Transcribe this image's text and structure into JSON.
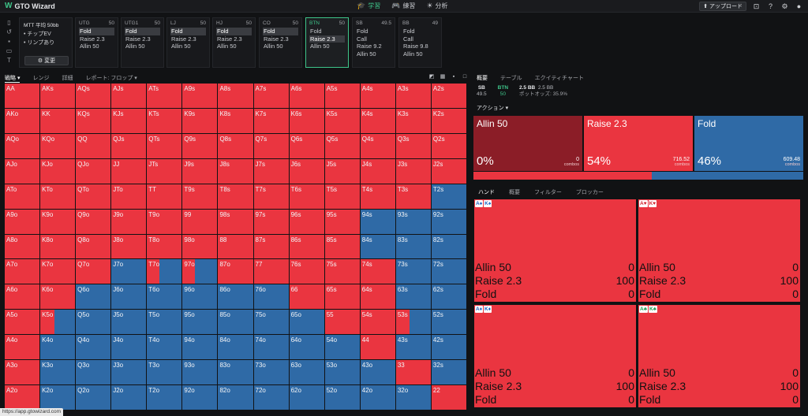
{
  "app": {
    "title": "GTO Wizard",
    "logo_icon": "wizard-logo-icon"
  },
  "nav": [
    {
      "label": "学習",
      "icon": "grad-cap-icon",
      "glyph": "🎓",
      "active": true
    },
    {
      "label": "練習",
      "icon": "gamepad-icon",
      "glyph": "🎮",
      "active": false
    },
    {
      "label": "分析",
      "icon": "bulb-icon",
      "glyph": "☀",
      "active": false
    }
  ],
  "toolbar": {
    "upload_label": "⬆ アップロード"
  },
  "game": {
    "title": "MTT 平均 50bb",
    "options": [
      "• チップEV",
      "• リンプあり"
    ],
    "change_label": "⚙ 変更"
  },
  "positions": [
    {
      "name": "UTG",
      "stack": "50",
      "actions": [
        "Fold",
        "Raise 2.3",
        "Allin 50"
      ],
      "selected": 0,
      "active": false
    },
    {
      "name": "UTG1",
      "stack": "50",
      "actions": [
        "Fold",
        "Raise 2.3",
        "Allin 50"
      ],
      "selected": 0,
      "active": false
    },
    {
      "name": "LJ",
      "stack": "50",
      "actions": [
        "Fold",
        "Raise 2.3",
        "Allin 50"
      ],
      "selected": 0,
      "active": false
    },
    {
      "name": "HJ",
      "stack": "50",
      "actions": [
        "Fold",
        "Raise 2.3",
        "Allin 50"
      ],
      "selected": 0,
      "active": false
    },
    {
      "name": "CO",
      "stack": "50",
      "actions": [
        "Fold",
        "Raise 2.3",
        "Allin 50"
      ],
      "selected": 0,
      "active": false
    },
    {
      "name": "BTN",
      "stack": "50",
      "actions": [
        "Fold",
        "Raise 2.3",
        "Allin 50"
      ],
      "selected": 1,
      "active": true
    },
    {
      "name": "SB",
      "stack": "49.5",
      "actions": [
        "Fold",
        "Call",
        "Raise 9.2",
        "Allin 50"
      ],
      "selected": -1,
      "active": false
    },
    {
      "name": "BB",
      "stack": "49",
      "actions": [
        "Fold",
        "Call",
        "Raise 9.8",
        "Allin 50"
      ],
      "selected": -1,
      "active": false
    }
  ],
  "strategy_tabs": [
    {
      "label": "戦略 ▾",
      "active": true
    },
    {
      "label": "レンジ",
      "active": false
    },
    {
      "label": "詳細",
      "active": false
    },
    {
      "label": "レポート: フロップ ▾",
      "active": false
    }
  ],
  "colors": {
    "allin": "#8b1d27",
    "raise": "#ea3540",
    "fold": "#2f6aa6",
    "accent": "#3ec58a"
  },
  "ranks": [
    "A",
    "K",
    "Q",
    "J",
    "T",
    "9",
    "8",
    "7",
    "6",
    "5",
    "4",
    "3",
    "2"
  ],
  "raise_fraction": [
    [
      1,
      1,
      1,
      1,
      1,
      1,
      1,
      1,
      1,
      1,
      1,
      1,
      1
    ],
    [
      1,
      1,
      1,
      1,
      1,
      1,
      1,
      1,
      1,
      1,
      1,
      1,
      1
    ],
    [
      1,
      1,
      1,
      1,
      1,
      1,
      1,
      1,
      1,
      1,
      1,
      1,
      1
    ],
    [
      1,
      1,
      1,
      1,
      1,
      1,
      1,
      1,
      1,
      1,
      1,
      1,
      1
    ],
    [
      1,
      1,
      1,
      1,
      1,
      1,
      1,
      1,
      1,
      1,
      1,
      1,
      0
    ],
    [
      1,
      1,
      1,
      1,
      1,
      1,
      1,
      1,
      1,
      1,
      0,
      0,
      0
    ],
    [
      1,
      1,
      1,
      1,
      1,
      1,
      1,
      1,
      1,
      1,
      0,
      0,
      0
    ],
    [
      1,
      1,
      1,
      0,
      0.35,
      0.35,
      1,
      1,
      1,
      1,
      1,
      0,
      0
    ],
    [
      1,
      1,
      0,
      0,
      0,
      0,
      0,
      0,
      1,
      1,
      1,
      0,
      0
    ],
    [
      1,
      0.4,
      0,
      0,
      0,
      0,
      0,
      0,
      0,
      1,
      1,
      0.4,
      0
    ],
    [
      1,
      0,
      0,
      0,
      0,
      0,
      0,
      0,
      0,
      0,
      1,
      0,
      0
    ],
    [
      1,
      0,
      0,
      0,
      0,
      0,
      0,
      0,
      0,
      0,
      0,
      1,
      0
    ],
    [
      1,
      0,
      0,
      0,
      0,
      0,
      0,
      0,
      0,
      0,
      0,
      0,
      1
    ]
  ],
  "right_tabs": [
    {
      "label": "概要",
      "active": true
    },
    {
      "label": "テーブル",
      "active": false
    },
    {
      "label": "エクイティチャート",
      "active": false
    }
  ],
  "stacks": [
    {
      "pos": "SB",
      "stack": "49.5",
      "active": false
    },
    {
      "pos": "BTN",
      "stack": "50",
      "active": true
    }
  ],
  "pot": {
    "pot": "2.5 BB",
    "bet": "2.5 BB",
    "odds_label": "ポットオッズ:",
    "odds": "35.9%"
  },
  "action_selector": "アクション ▾",
  "actions": [
    {
      "name": "Allin 50",
      "pct": "0%",
      "combos": "0",
      "fraction": 0,
      "color": "#8b1d27"
    },
    {
      "name": "Raise 2.3",
      "pct": "54%",
      "combos": "716.52",
      "fraction": 0.54,
      "color": "#ea3540"
    },
    {
      "name": "Fold",
      "pct": "46%",
      "combos": "609.48",
      "fraction": 0.46,
      "color": "#2f6aa6"
    }
  ],
  "combos_label": "combos",
  "hand_tabs": [
    {
      "label": "ハンド",
      "active": true
    },
    {
      "label": "概要",
      "active": false
    },
    {
      "label": "フィルター",
      "active": false
    },
    {
      "label": "ブロッカー",
      "active": false
    }
  ],
  "combos": [
    {
      "cards": [
        {
          "t": "A♠",
          "c": "blue"
        },
        {
          "t": "K♠",
          "c": "blue"
        }
      ],
      "rows": [
        [
          "Allin 50",
          "0"
        ],
        [
          "Raise 2.3",
          "100"
        ],
        [
          "Fold",
          "0"
        ]
      ]
    },
    {
      "cards": [
        {
          "t": "A♥",
          "c": "red"
        },
        {
          "t": "K♥",
          "c": "red"
        }
      ],
      "rows": [
        [
          "Allin 50",
          "0"
        ],
        [
          "Raise 2.3",
          "100"
        ],
        [
          "Fold",
          "0"
        ]
      ]
    },
    {
      "cards": [
        {
          "t": "A♦",
          "c": "blue"
        },
        {
          "t": "K♦",
          "c": "blue"
        }
      ],
      "rows": [
        [
          "Allin 50",
          "0"
        ],
        [
          "Raise 2.3",
          "100"
        ],
        [
          "Fold",
          "0"
        ]
      ]
    },
    {
      "cards": [
        {
          "t": "A♣",
          "c": "green"
        },
        {
          "t": "K♣",
          "c": "green"
        }
      ],
      "rows": [
        [
          "Allin 50",
          "0"
        ],
        [
          "Raise 2.3",
          "100"
        ],
        [
          "Fold",
          "0"
        ]
      ]
    }
  ],
  "status_url": "https://app.gtowizard.com"
}
